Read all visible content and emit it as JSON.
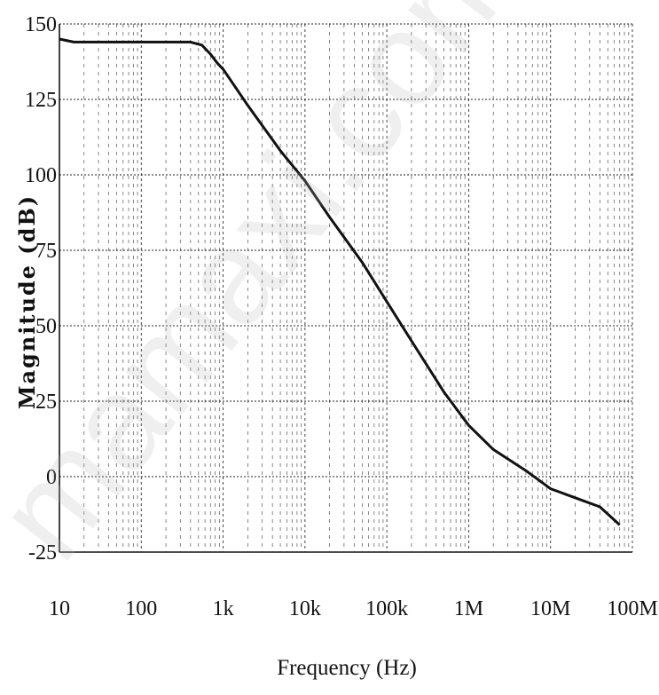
{
  "chart_data": {
    "type": "line",
    "xlabel": "Frequency (Hz)",
    "ylabel": "Magnitude (dB)",
    "xscale": "log",
    "xlim": [
      10,
      100000000
    ],
    "ylim": [
      -25,
      150
    ],
    "grid": true,
    "x_tick_values": [
      10,
      100,
      1000,
      10000,
      100000,
      1000000,
      10000000,
      100000000
    ],
    "x_tick_labels": [
      "10",
      "100",
      "1k",
      "10k",
      "100k",
      "1M",
      "10M",
      "100M"
    ],
    "y_ticks": [
      -25,
      0,
      25,
      50,
      75,
      100,
      125,
      150
    ],
    "series": [
      {
        "x": [
          10,
          15,
          30,
          100,
          200,
          400,
          550,
          700,
          850,
          1000,
          2000,
          5000,
          10000,
          20000,
          50000,
          100000,
          200000,
          500000,
          1000000,
          2000000,
          5000000,
          10000000,
          20000000,
          40000000,
          70000000
        ],
        "y": [
          145,
          144,
          144,
          144,
          144,
          144,
          143,
          140,
          137,
          135,
          123,
          108,
          98,
          86,
          71,
          58,
          45,
          28,
          17,
          9,
          2,
          -4,
          -7,
          -10,
          -16
        ]
      }
    ],
    "color": "#111111"
  },
  "watermark": "mamaxi.com"
}
